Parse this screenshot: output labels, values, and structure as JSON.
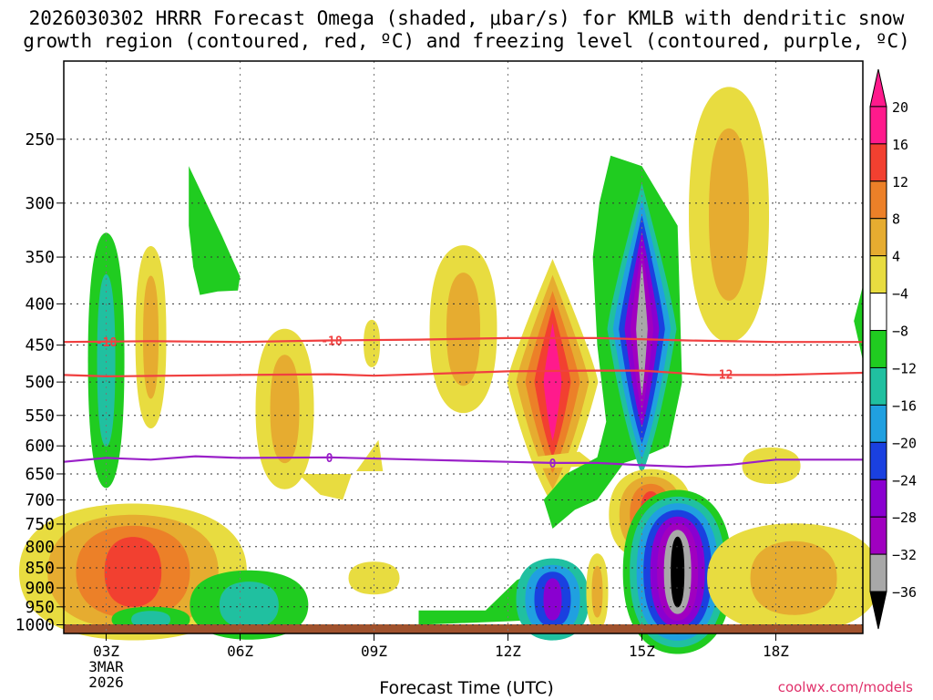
{
  "title_line1": "2026030302 HRRR Forecast Omega (shaded, μbar/s) for KMLB with dendritic snow",
  "title_line2": "growth region (contoured, red, ºC) and freezing level (contoured, purple, ºC)",
  "credit": "coolwx.com/models",
  "chart_data": {
    "type": "contour",
    "title": "2026030302 HRRR Forecast Omega (shaded, μbar/s) for KMLB with dendritic snow growth region (contoured, red, ºC) and freezing level (contoured, purple, ºC)",
    "xlabel": "Forecast Time (UTC)",
    "ylabel": "",
    "x_ticks": [
      {
        "hour": 3,
        "label": "03Z",
        "sub": [
          "3MAR",
          "2026"
        ]
      },
      {
        "hour": 6,
        "label": "06Z"
      },
      {
        "hour": 9,
        "label": "09Z"
      },
      {
        "hour": 12,
        "label": "12Z"
      },
      {
        "hour": 15,
        "label": "15Z"
      },
      {
        "hour": 18,
        "label": "18Z"
      }
    ],
    "xlim": [
      2.05,
      19.95
    ],
    "ylim_hpa": [
      1025,
      200
    ],
    "y_ticks": [
      250,
      300,
      350,
      400,
      450,
      500,
      550,
      600,
      650,
      700,
      750,
      800,
      850,
      900,
      950,
      1000
    ],
    "colorbar": {
      "labels": [
        "20",
        "16",
        "12",
        "8",
        "4",
        "−4",
        "−8",
        "−12",
        "−16",
        "−20",
        "−24",
        "−28",
        "−32",
        "−36"
      ],
      "colors": [
        "#ff1a8c",
        "#f24030",
        "#ec8028",
        "#e6ac30",
        "#e8dc40",
        "#ffffff",
        "#20cc20",
        "#20c0a0",
        "#20a0e0",
        "#1a40e0",
        "#8a00d0",
        "#a000c0",
        "#a8a8a8",
        "#000000"
      ]
    },
    "contours": [
      {
        "name": "dendritic -18C",
        "label": "-18",
        "color": "#f04040",
        "points": [
          [
            2.05,
            446
          ],
          [
            4,
            445
          ],
          [
            6,
            446
          ],
          [
            8,
            444
          ],
          [
            10,
            443
          ],
          [
            12,
            441
          ],
          [
            14,
            441
          ],
          [
            16,
            444
          ],
          [
            18,
            446
          ],
          [
            19.95,
            446
          ]
        ]
      },
      {
        "name": "dendritic -12C",
        "label": "-12",
        "color": "#f04040",
        "points": [
          [
            2.05,
            490
          ],
          [
            3,
            492
          ],
          [
            6,
            490
          ],
          [
            8,
            489
          ],
          [
            9,
            491
          ],
          [
            10,
            489
          ],
          [
            12,
            485
          ],
          [
            14,
            484
          ],
          [
            15,
            484
          ],
          [
            16.5,
            490
          ],
          [
            18,
            490
          ],
          [
            19.95,
            487
          ]
        ]
      },
      {
        "name": "freezing level 0C",
        "label": "0",
        "color": "#9a20c8",
        "points": [
          [
            2.05,
            628
          ],
          [
            3,
            621
          ],
          [
            4,
            624
          ],
          [
            5,
            618
          ],
          [
            6,
            621
          ],
          [
            8,
            620
          ],
          [
            10,
            624
          ],
          [
            12,
            628
          ],
          [
            13,
            630
          ],
          [
            14,
            630
          ],
          [
            15,
            634
          ],
          [
            16,
            637
          ],
          [
            17,
            633
          ],
          [
            18,
            624
          ],
          [
            19.95,
            624
          ]
        ]
      }
    ],
    "features": [
      {
        "name": "downward-3z-upper",
        "level": "-8",
        "hour": 3,
        "p_top": 330,
        "p_bot": 610
      },
      {
        "name": "updraft-4z",
        "level": "4",
        "hour": 4,
        "p_top": 330,
        "p_bot": 545
      },
      {
        "name": "downward-5z",
        "level": "-8",
        "hour": 5,
        "p_top": 270,
        "p_bot": 400
      },
      {
        "name": "updraft-7z",
        "level": "4",
        "hour": 7,
        "p_top": 440,
        "p_bot": 720
      },
      {
        "name": "updraft-11z",
        "level": "8",
        "hour": 11,
        "p_top": 345,
        "p_bot": 580
      },
      {
        "name": "updraft-13z",
        "level": "20",
        "hour": 13,
        "p_top": 360,
        "p_bot": 650
      },
      {
        "name": "downward-15z",
        "level": "-36",
        "hour": 15,
        "p_top": 262,
        "p_bot": 620
      },
      {
        "name": "updraft-17z",
        "level": "8",
        "hour": 17,
        "p_top": 265,
        "p_bot": 450
      },
      {
        "name": "updraft-3z-low",
        "level": "16",
        "hour": 3,
        "p_top": 770,
        "p_bot": 950
      },
      {
        "name": "downward-16z-low",
        "level": "-36",
        "hour": 16,
        "p_top": 760,
        "p_bot": 960
      },
      {
        "name": "updraft-18z-low",
        "level": "8",
        "hour": 18,
        "p_top": 810,
        "p_bot": 940
      }
    ]
  }
}
